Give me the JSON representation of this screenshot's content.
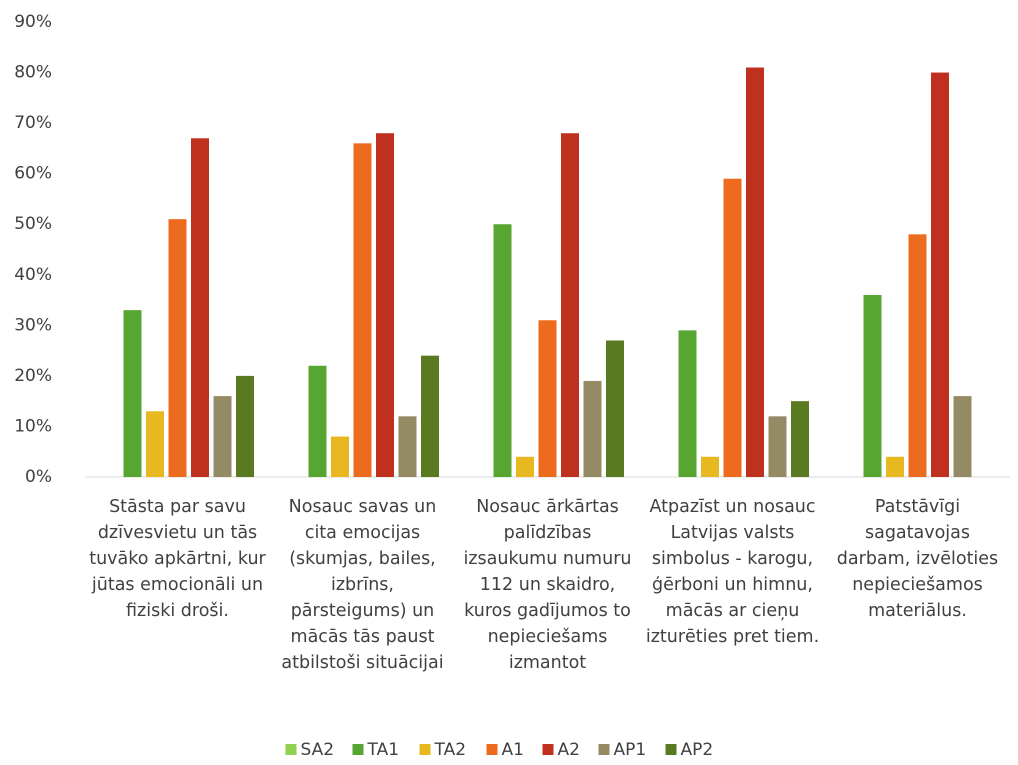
{
  "chart_data": {
    "type": "bar",
    "categories": [
      "Stāsta par savu dzīvesvietu un tās tuvāko apkārtni, kur jūtas emocionāli un fiziski droši.",
      "Nosauc savas un cita emocijas (skumjas, bailes, izbrīns, pārsteigums) un mācās tās paust atbilstoši situācijai",
      "Nosauc ārkārtas palīdzības izsaukumu numuru 112 un skaidro, kuros gadījumos to nepieciešams izmantot",
      "Atpazīst un nosauc Latvijas valsts simbolus - karogu, ģērboni un himnu, mācās ar cieņu izturēties pret tiem.",
      "Patstāvīgi sagatavojas darbam, izvēloties nepieciešamos materiālus."
    ],
    "series": [
      {
        "name": "SA2",
        "color": "#92d050",
        "values": [
          null,
          null,
          null,
          null,
          null
        ]
      },
      {
        "name": "TA1",
        "color": "#57a632",
        "values": [
          33,
          22,
          50,
          29,
          36
        ]
      },
      {
        "name": "TA2",
        "color": "#e8b820",
        "values": [
          13,
          8,
          4,
          4,
          4
        ]
      },
      {
        "name": "A1",
        "color": "#ed6b1c",
        "values": [
          51,
          66,
          31,
          59,
          48
        ]
      },
      {
        "name": "A2",
        "color": "#c0301f",
        "values": [
          67,
          68,
          68,
          81,
          80
        ]
      },
      {
        "name": "AP1",
        "color": "#948a64",
        "values": [
          16,
          12,
          19,
          12,
          16
        ]
      },
      {
        "name": "AP2",
        "color": "#5a7a22",
        "values": [
          20,
          24,
          27,
          15,
          null
        ]
      }
    ],
    "ylim": [
      0,
      90
    ],
    "yticks": [
      {
        "value": 0,
        "label": "0%"
      },
      {
        "value": 10,
        "label": "10%"
      },
      {
        "value": 20,
        "label": "20%"
      },
      {
        "value": 30,
        "label": "30%"
      },
      {
        "value": 40,
        "label": "40%"
      },
      {
        "value": 50,
        "label": "50%"
      },
      {
        "value": 60,
        "label": "60%"
      },
      {
        "value": 70,
        "label": "70%"
      },
      {
        "value": 80,
        "label": "80%"
      },
      {
        "value": 90,
        "label": "90%"
      }
    ],
    "grid": false,
    "legend": "bottom"
  }
}
